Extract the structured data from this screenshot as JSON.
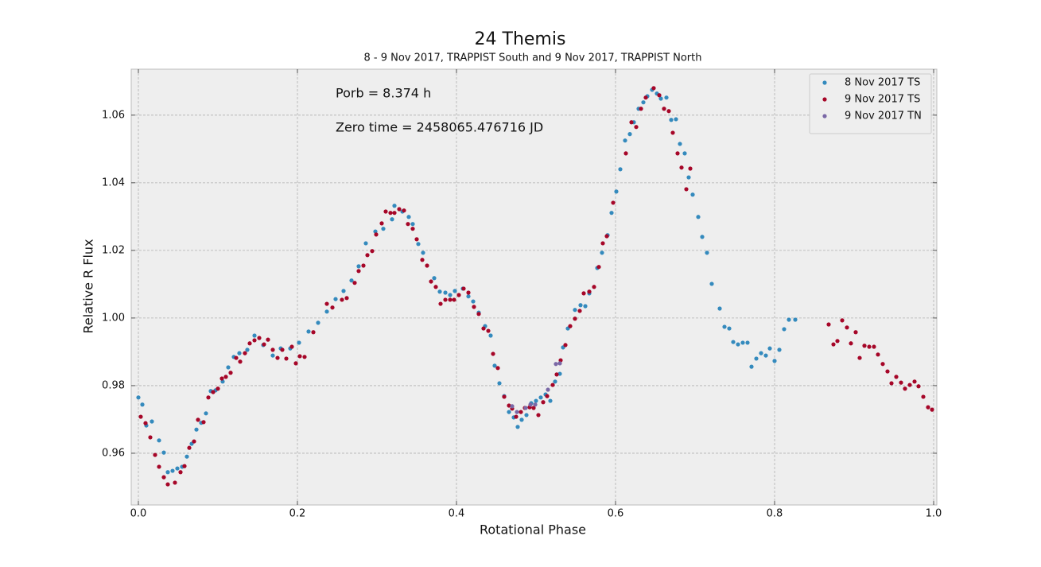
{
  "chart_data": {
    "type": "scatter",
    "title": "24 Themis",
    "subtitle": "8 - 9 Nov 2017, TRAPPIST South and 9 Nov 2017, TRAPPIST North",
    "x_label": "Rotational Phase",
    "y_label": "Relative R Flux",
    "annotations": [
      "Porb = 8.374 h",
      "Zero time = 2458065.476716 JD"
    ],
    "xlim": [
      -0.009,
      1.004
    ],
    "ylim": [
      0.9447,
      1.0736
    ],
    "xticks": [
      {
        "value": 0,
        "label": "0.0"
      },
      0.2,
      0.4,
      0.6,
      0.8,
      {
        "value": 1,
        "label": "1.0"
      }
    ],
    "yticks": [
      0.96,
      0.98,
      {
        "value": 1,
        "label": "1.00"
      },
      1.02,
      1.04,
      1.06
    ],
    "grid": true,
    "legend": "upper right",
    "series": [
      {
        "name": "8 Nov 2017 TS",
        "color": "#348ABD",
        "x": [
          0,
          0.005,
          0.01,
          0.017,
          0.026,
          0.032,
          0.037,
          0.043,
          0.049,
          0.055,
          0.061,
          0.067,
          0.073,
          0.079,
          0.085,
          0.091,
          0.097,
          0.106,
          0.113,
          0.12,
          0.127,
          0.137,
          0.146,
          0.157,
          0.169,
          0.179,
          0.191,
          0.202,
          0.214,
          0.226,
          0.237,
          0.248,
          0.258,
          0.268,
          0.277,
          0.286,
          0.298,
          0.308,
          0.319,
          0.322,
          0.332,
          0.34,
          0.345,
          0.352,
          0.358,
          0.372,
          0.379,
          0.386,
          0.392,
          0.398,
          0.408,
          0.415,
          0.421,
          0.428,
          0.436,
          0.443,
          0.448,
          0.454,
          0.46,
          0.466,
          0.472,
          0.477,
          0.482,
          0.488,
          0.494,
          0.5,
          0.506,
          0.512,
          0.518,
          0.524,
          0.53,
          0.534,
          0.54,
          0.549,
          0.556,
          0.562,
          0.567,
          0.577,
          0.583,
          0.59,
          0.595,
          0.601,
          0.606,
          0.612,
          0.618,
          0.623,
          0.629,
          0.635,
          0.64,
          0.646,
          0.652,
          0.657,
          0.664,
          0.67,
          0.676,
          0.681,
          0.687,
          0.692,
          0.697,
          0.704,
          0.709,
          0.715,
          0.721,
          0.731,
          0.737,
          0.743,
          0.748,
          0.754,
          0.76,
          0.766,
          0.771,
          0.777,
          0.783,
          0.789,
          0.794,
          0.8,
          0.806,
          0.812,
          0.818,
          0.826
        ],
        "values": [
          0.9765,
          0.9744,
          0.9682,
          0.9694,
          0.9638,
          0.9602,
          0.9544,
          0.9548,
          0.9555,
          0.956,
          0.959,
          0.9628,
          0.967,
          0.969,
          0.9718,
          0.9784,
          0.9786,
          0.9812,
          0.9854,
          0.9885,
          0.9896,
          0.9906,
          0.9948,
          0.992,
          0.9889,
          0.991,
          0.991,
          0.9927,
          0.996,
          0.9986,
          1.0019,
          1.0056,
          1.008,
          1.0111,
          1.0153,
          1.0221,
          1.0256,
          1.0264,
          1.0292,
          1.0332,
          1.0315,
          1.0299,
          1.0278,
          1.0219,
          1.0193,
          1.0118,
          1.0078,
          1.0075,
          1.0068,
          1.008,
          1.0087,
          1.0064,
          1.0049,
          1.0016,
          0.9976,
          0.9948,
          0.9859,
          0.9807,
          0.9769,
          0.9722,
          0.9706,
          0.9678,
          0.9699,
          0.9713,
          0.9748,
          0.9755,
          0.9765,
          0.9774,
          0.9755,
          0.9812,
          0.9835,
          0.9913,
          0.9969,
          1.0024,
          1.0038,
          1.0035,
          1.0073,
          1.0148,
          1.0193,
          1.0245,
          1.0311,
          1.0374,
          1.044,
          1.0525,
          1.0544,
          1.0579,
          1.0619,
          1.0638,
          1.0656,
          1.0675,
          1.0664,
          1.0649,
          1.0652,
          1.0586,
          1.0588,
          1.0515,
          1.0487,
          1.0416,
          1.0365,
          1.0299,
          1.024,
          1.0193,
          1.0101,
          1.0028,
          0.9974,
          0.9969,
          0.9929,
          0.9922,
          0.9927,
          0.9927,
          0.9856,
          0.988,
          0.9896,
          0.9889,
          0.991,
          0.9873,
          0.9906,
          0.9967,
          0.9995,
          0.9995
        ]
      },
      {
        "name": "9 Nov 2017 TS",
        "color": "#A60628",
        "x": [
          0.003,
          0.009,
          0.015,
          0.021,
          0.026,
          0.032,
          0.037,
          0.046,
          0.053,
          0.058,
          0.064,
          0.07,
          0.075,
          0.082,
          0.088,
          0.094,
          0.1,
          0.105,
          0.11,
          0.116,
          0.123,
          0.128,
          0.134,
          0.14,
          0.146,
          0.152,
          0.158,
          0.163,
          0.169,
          0.175,
          0.181,
          0.186,
          0.193,
          0.198,
          0.203,
          0.209,
          0.22,
          0.237,
          0.244,
          0.256,
          0.262,
          0.272,
          0.277,
          0.283,
          0.288,
          0.294,
          0.299,
          0.306,
          0.311,
          0.317,
          0.322,
          0.328,
          0.334,
          0.339,
          0.345,
          0.35,
          0.357,
          0.363,
          0.368,
          0.374,
          0.38,
          0.386,
          0.392,
          0.397,
          0.403,
          0.409,
          0.415,
          0.422,
          0.428,
          0.434,
          0.44,
          0.446,
          0.452,
          0.46,
          0.466,
          0.47,
          0.475,
          0.481,
          0.486,
          0.492,
          0.497,
          0.503,
          0.509,
          0.514,
          0.521,
          0.526,
          0.531,
          0.537,
          0.543,
          0.549,
          0.555,
          0.56,
          0.567,
          0.573,
          0.579,
          0.584,
          0.589,
          0.597,
          0.613,
          0.62,
          0.626,
          0.632,
          0.638,
          0.648,
          0.655,
          0.661,
          0.667,
          0.672,
          0.678,
          0.683,
          0.689,
          0.694,
          0.868,
          0.874,
          0.879,
          0.885,
          0.891,
          0.896,
          0.902,
          0.907,
          0.913,
          0.919,
          0.925,
          0.93,
          0.936,
          0.942,
          0.947,
          0.953,
          0.959,
          0.964,
          0.97,
          0.976,
          0.981,
          0.987,
          0.993,
          0.998
        ],
        "values": [
          0.9708,
          0.9689,
          0.9647,
          0.9595,
          0.956,
          0.9529,
          0.9508,
          0.9513,
          0.9544,
          0.9562,
          0.9616,
          0.9635,
          0.9699,
          0.9692,
          0.9765,
          0.9781,
          0.9791,
          0.9821,
          0.9826,
          0.9838,
          0.9882,
          0.9871,
          0.9896,
          0.9925,
          0.9934,
          0.9941,
          0.9922,
          0.9936,
          0.9906,
          0.9882,
          0.9906,
          0.988,
          0.9915,
          0.9866,
          0.9887,
          0.9885,
          0.9958,
          1.0042,
          1.0031,
          1.0054,
          1.0059,
          1.0104,
          1.0139,
          1.0155,
          1.0186,
          1.0198,
          1.0247,
          1.028,
          1.0315,
          1.0311,
          1.0311,
          1.0322,
          1.0318,
          1.0278,
          1.0264,
          1.0233,
          1.0172,
          1.0155,
          1.0108,
          1.0092,
          1.0042,
          1.0054,
          1.0054,
          1.0054,
          1.0068,
          1.0087,
          1.0075,
          1.0033,
          1.0012,
          0.9969,
          0.9962,
          0.9894,
          0.9852,
          0.9767,
          0.9741,
          0.9732,
          0.9708,
          0.9722,
          0.9734,
          0.9736,
          0.9734,
          0.9713,
          0.9751,
          0.9769,
          0.9802,
          0.9833,
          0.9875,
          0.992,
          0.9976,
          0.9998,
          1.0021,
          1.0073,
          1.0078,
          1.0092,
          1.0151,
          1.0221,
          1.0242,
          1.0341,
          1.0487,
          1.0579,
          1.0565,
          1.0619,
          1.0652,
          1.068,
          1.0659,
          1.0619,
          1.0612,
          1.0548,
          1.0487,
          1.0445,
          1.0381,
          1.0442,
          0.9981,
          0.9922,
          0.9932,
          0.9993,
          0.9972,
          0.9925,
          0.9958,
          0.9882,
          0.9918,
          0.9915,
          0.9915,
          0.9892,
          0.9864,
          0.9842,
          0.9807,
          0.9826,
          0.9809,
          0.9791,
          0.9802,
          0.9812,
          0.9798,
          0.9767,
          0.9736,
          0.9729
        ]
      },
      {
        "name": "9 Nov 2017 TN",
        "color": "#7A68A6",
        "x": [
          0.47,
          0.476,
          0.487,
          0.493,
          0.499,
          0.515,
          0.525,
          0.53
        ],
        "values": [
          0.9739,
          0.9722,
          0.9734,
          0.9744,
          0.9744,
          0.9788,
          0.9864,
          0.9866
        ]
      }
    ]
  }
}
